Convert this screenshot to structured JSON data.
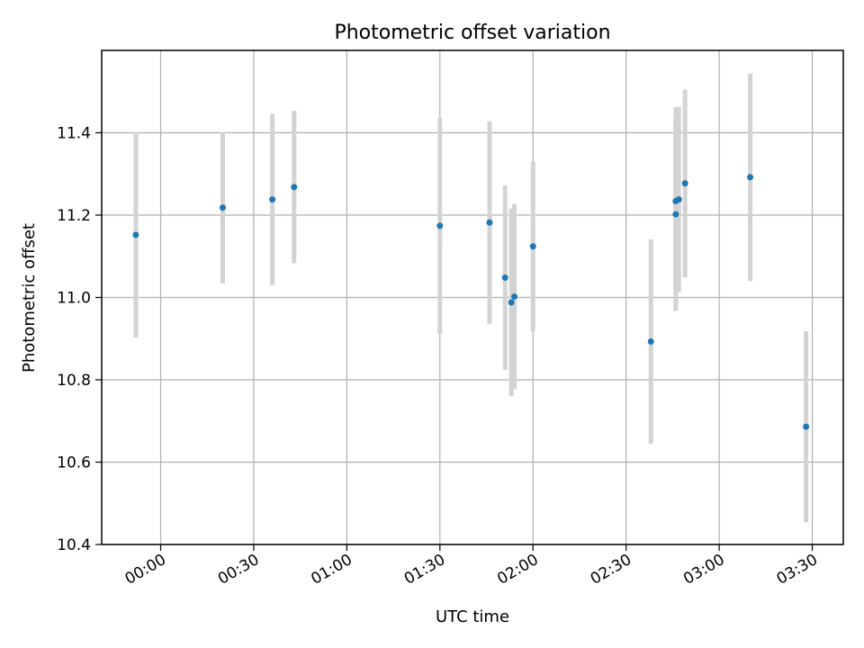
{
  "chart_data": {
    "type": "scatter",
    "title": "Photometric offset variation",
    "xlabel": "UTC time",
    "ylabel": "Photometric offset",
    "grid": true,
    "x_is_time": true,
    "xlim": [
      "23:41",
      "03:40"
    ],
    "ylim": [
      10.4,
      11.6
    ],
    "x_ticks": [
      "00:00",
      "00:30",
      "01:00",
      "01:30",
      "02:00",
      "02:30",
      "03:00",
      "03:30"
    ],
    "y_ticks": [
      10.4,
      10.6,
      10.8,
      11.0,
      11.2,
      11.4
    ],
    "y_tick_labels": [
      "10.4",
      "10.6",
      "10.8",
      "11.0",
      "11.2",
      "11.4"
    ],
    "marker_color": "#1f77b4",
    "errorbar_color": "#d3d3d3",
    "points": [
      {
        "x": "23:52",
        "y": 11.152,
        "yerr": 0.25
      },
      {
        "x": "00:20",
        "y": 11.218,
        "yerr": 0.184
      },
      {
        "x": "00:36",
        "y": 11.238,
        "yerr": 0.208
      },
      {
        "x": "00:43",
        "y": 11.268,
        "yerr": 0.185
      },
      {
        "x": "01:30",
        "y": 11.174,
        "yerr": 0.262
      },
      {
        "x": "01:46",
        "y": 11.182,
        "yerr": 0.246
      },
      {
        "x": "01:51",
        "y": 11.048,
        "yerr": 0.224
      },
      {
        "x": "01:53",
        "y": 10.988,
        "yerr": 0.228
      },
      {
        "x": "01:54",
        "y": 11.002,
        "yerr": 0.225
      },
      {
        "x": "02:00",
        "y": 11.124,
        "yerr": 0.206
      },
      {
        "x": "02:38",
        "y": 10.893,
        "yerr": 0.248
      },
      {
        "x": "02:46",
        "y": 11.202,
        "yerr": 0.235
      },
      {
        "x": "02:46",
        "y": 11.234,
        "yerr": 0.228
      },
      {
        "x": "02:47",
        "y": 11.238,
        "yerr": 0.225
      },
      {
        "x": "02:49",
        "y": 11.277,
        "yerr": 0.228
      },
      {
        "x": "03:10",
        "y": 11.292,
        "yerr": 0.252
      },
      {
        "x": "03:28",
        "y": 10.686,
        "yerr": 0.232
      }
    ]
  }
}
